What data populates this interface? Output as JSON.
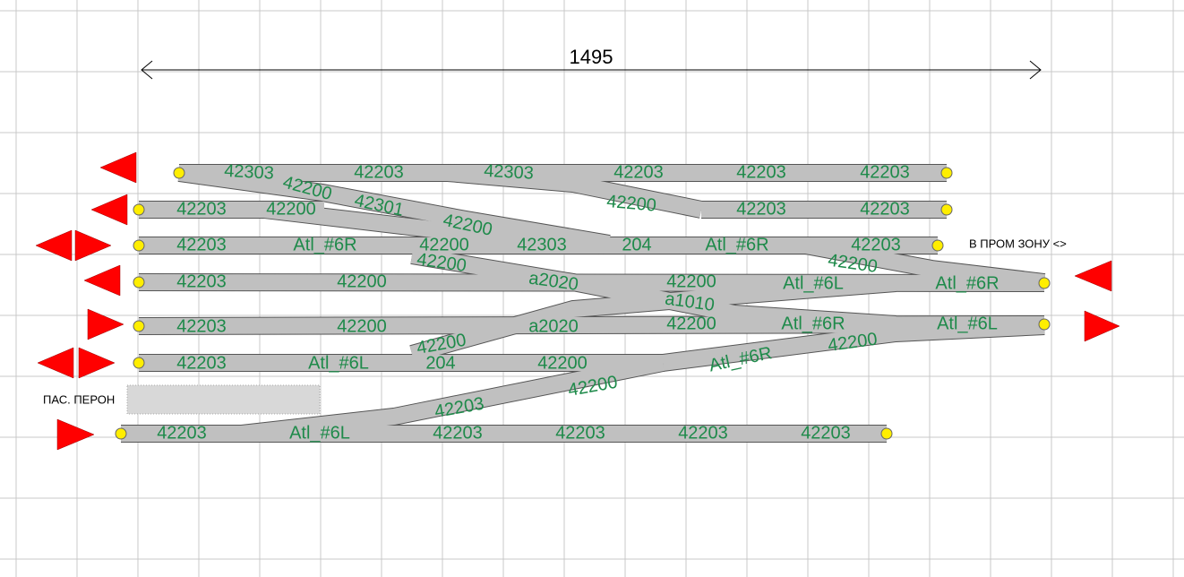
{
  "dimension": "1495",
  "labels": {
    "industrial_zone": "В ПРОМ ЗОНУ <>",
    "platform": "ПАС.  ПЕРОН"
  },
  "track_pieces": [
    "42303",
    "42203",
    "42303",
    "42203",
    "42203",
    "42203",
    "42200",
    "42301",
    "42200",
    "42200",
    "42203",
    "42200",
    "42203",
    "42203",
    "42203",
    "Atl_#6R",
    "42200",
    "42303",
    "204",
    "Atl_#6R",
    "42203",
    "42200",
    "42200",
    "42203",
    "42200",
    "a2020",
    "42200",
    "Atl_#6L",
    "Atl_#6R",
    "a1010",
    "42203",
    "42200",
    "a2020",
    "42200",
    "Atl_#6R",
    "Atl_#6L",
    "42200",
    "42200",
    "42203",
    "Atl_#6L",
    "204",
    "42200",
    "Atl_#6R",
    "42200",
    "42203",
    "42203",
    "Atl_#6L",
    "42203",
    "42203",
    "42203",
    "42203"
  ]
}
